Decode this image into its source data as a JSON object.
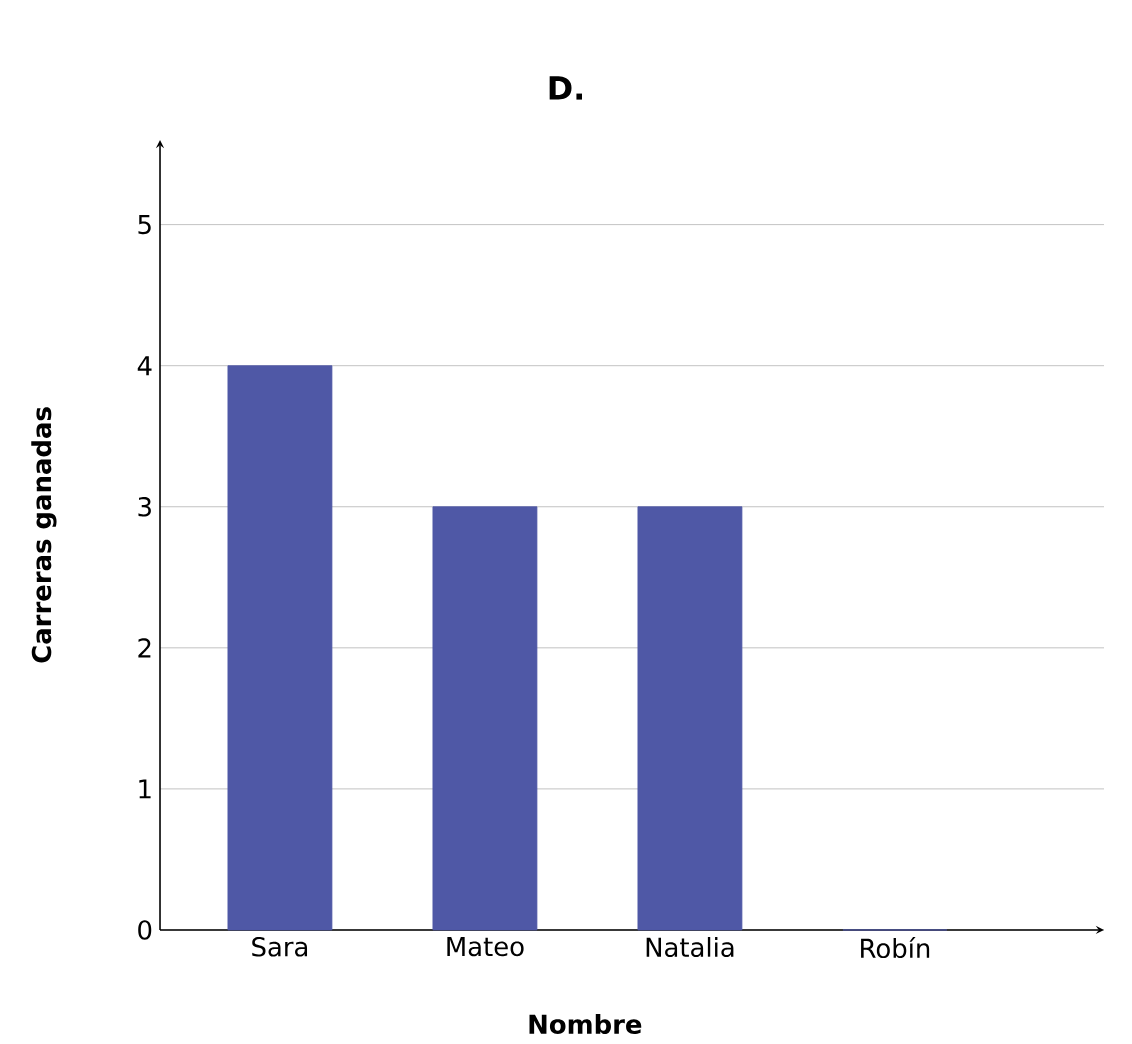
{
  "chart_data": {
    "type": "bar",
    "title": "D.",
    "xlabel": "Nombre",
    "ylabel": "Carreras ganadas",
    "categories": [
      "Sara",
      "Mateo",
      "Natalia",
      "Robín"
    ],
    "values": [
      4,
      3,
      3,
      0
    ],
    "color": "#4f58a6",
    "ylim": [
      0,
      5.6
    ],
    "yticks": [
      0,
      1,
      2,
      3,
      4,
      5
    ],
    "grid": "y"
  }
}
